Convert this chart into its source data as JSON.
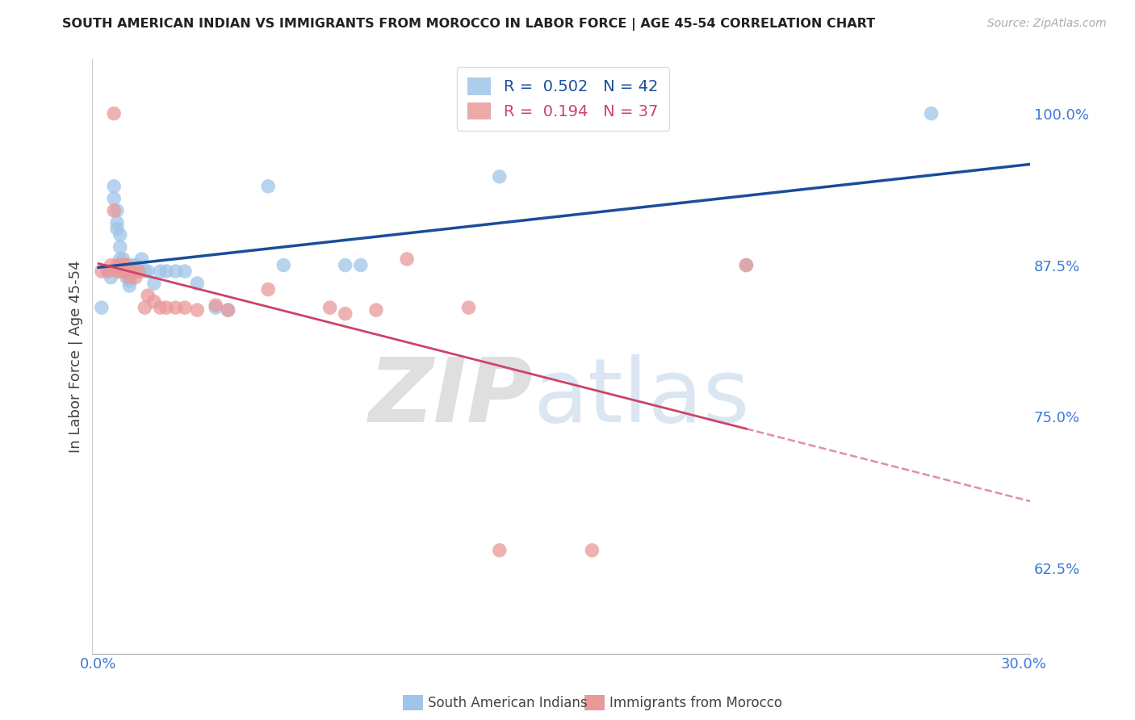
{
  "title": "SOUTH AMERICAN INDIAN VS IMMIGRANTS FROM MOROCCO IN LABOR FORCE | AGE 45-54 CORRELATION CHART",
  "source": "Source: ZipAtlas.com",
  "ylabel": "In Labor Force | Age 45-54",
  "xlim_min": -0.002,
  "xlim_max": 0.302,
  "ylim_min": 0.555,
  "ylim_max": 1.045,
  "yticks": [
    0.625,
    0.75,
    0.875,
    1.0
  ],
  "ytick_labels": [
    "62.5%",
    "75.0%",
    "87.5%",
    "100.0%"
  ],
  "xticks": [
    0.0,
    0.05,
    0.1,
    0.15,
    0.2,
    0.25,
    0.3
  ],
  "xtick_labels": [
    "0.0%",
    "",
    "",
    "",
    "",
    "",
    "30.0%"
  ],
  "blue_R": 0.502,
  "blue_N": 42,
  "pink_R": 0.194,
  "pink_N": 37,
  "blue_scatter_color": "#9fc5e8",
  "pink_scatter_color": "#ea9999",
  "blue_line_color": "#1a4d99",
  "pink_line_color": "#cc4466",
  "title_color": "#222222",
  "axis_label_color": "#444444",
  "tick_label_color": "#3c78d8",
  "grid_color": "#cccccc",
  "legend_label_blue": "South American Indians",
  "legend_label_pink": "Immigrants from Morocco",
  "watermark_zip": "ZIP",
  "watermark_atlas": "atlas",
  "blue_x": [
    0.001,
    0.003,
    0.004,
    0.005,
    0.005,
    0.006,
    0.006,
    0.006,
    0.007,
    0.007,
    0.007,
    0.008,
    0.008,
    0.008,
    0.009,
    0.009,
    0.009,
    0.01,
    0.01,
    0.011,
    0.011,
    0.012,
    0.012,
    0.013,
    0.014,
    0.015,
    0.016,
    0.018,
    0.02,
    0.022,
    0.025,
    0.028,
    0.032,
    0.038,
    0.042,
    0.055,
    0.06,
    0.08,
    0.085,
    0.13,
    0.21,
    0.27
  ],
  "blue_y": [
    0.84,
    0.87,
    0.865,
    0.94,
    0.93,
    0.92,
    0.91,
    0.905,
    0.9,
    0.89,
    0.88,
    0.88,
    0.875,
    0.87,
    0.875,
    0.87,
    0.865,
    0.862,
    0.858,
    0.875,
    0.87,
    0.875,
    0.87,
    0.87,
    0.88,
    0.87,
    0.87,
    0.86,
    0.87,
    0.87,
    0.87,
    0.87,
    0.86,
    0.84,
    0.838,
    0.94,
    0.875,
    0.875,
    0.875,
    0.948,
    0.875,
    1.0
  ],
  "pink_x": [
    0.001,
    0.003,
    0.004,
    0.005,
    0.005,
    0.006,
    0.006,
    0.007,
    0.007,
    0.008,
    0.008,
    0.009,
    0.009,
    0.01,
    0.01,
    0.011,
    0.012,
    0.013,
    0.015,
    0.016,
    0.018,
    0.02,
    0.022,
    0.025,
    0.028,
    0.032,
    0.038,
    0.042,
    0.055,
    0.075,
    0.08,
    0.09,
    0.1,
    0.12,
    0.13,
    0.16,
    0.21
  ],
  "pink_y": [
    0.87,
    0.87,
    0.875,
    1.0,
    0.92,
    0.875,
    0.87,
    0.875,
    0.87,
    0.875,
    0.87,
    0.875,
    0.87,
    0.87,
    0.865,
    0.87,
    0.865,
    0.87,
    0.84,
    0.85,
    0.845,
    0.84,
    0.84,
    0.84,
    0.84,
    0.838,
    0.842,
    0.838,
    0.855,
    0.84,
    0.835,
    0.838,
    0.88,
    0.84,
    0.64,
    0.64,
    0.875
  ]
}
